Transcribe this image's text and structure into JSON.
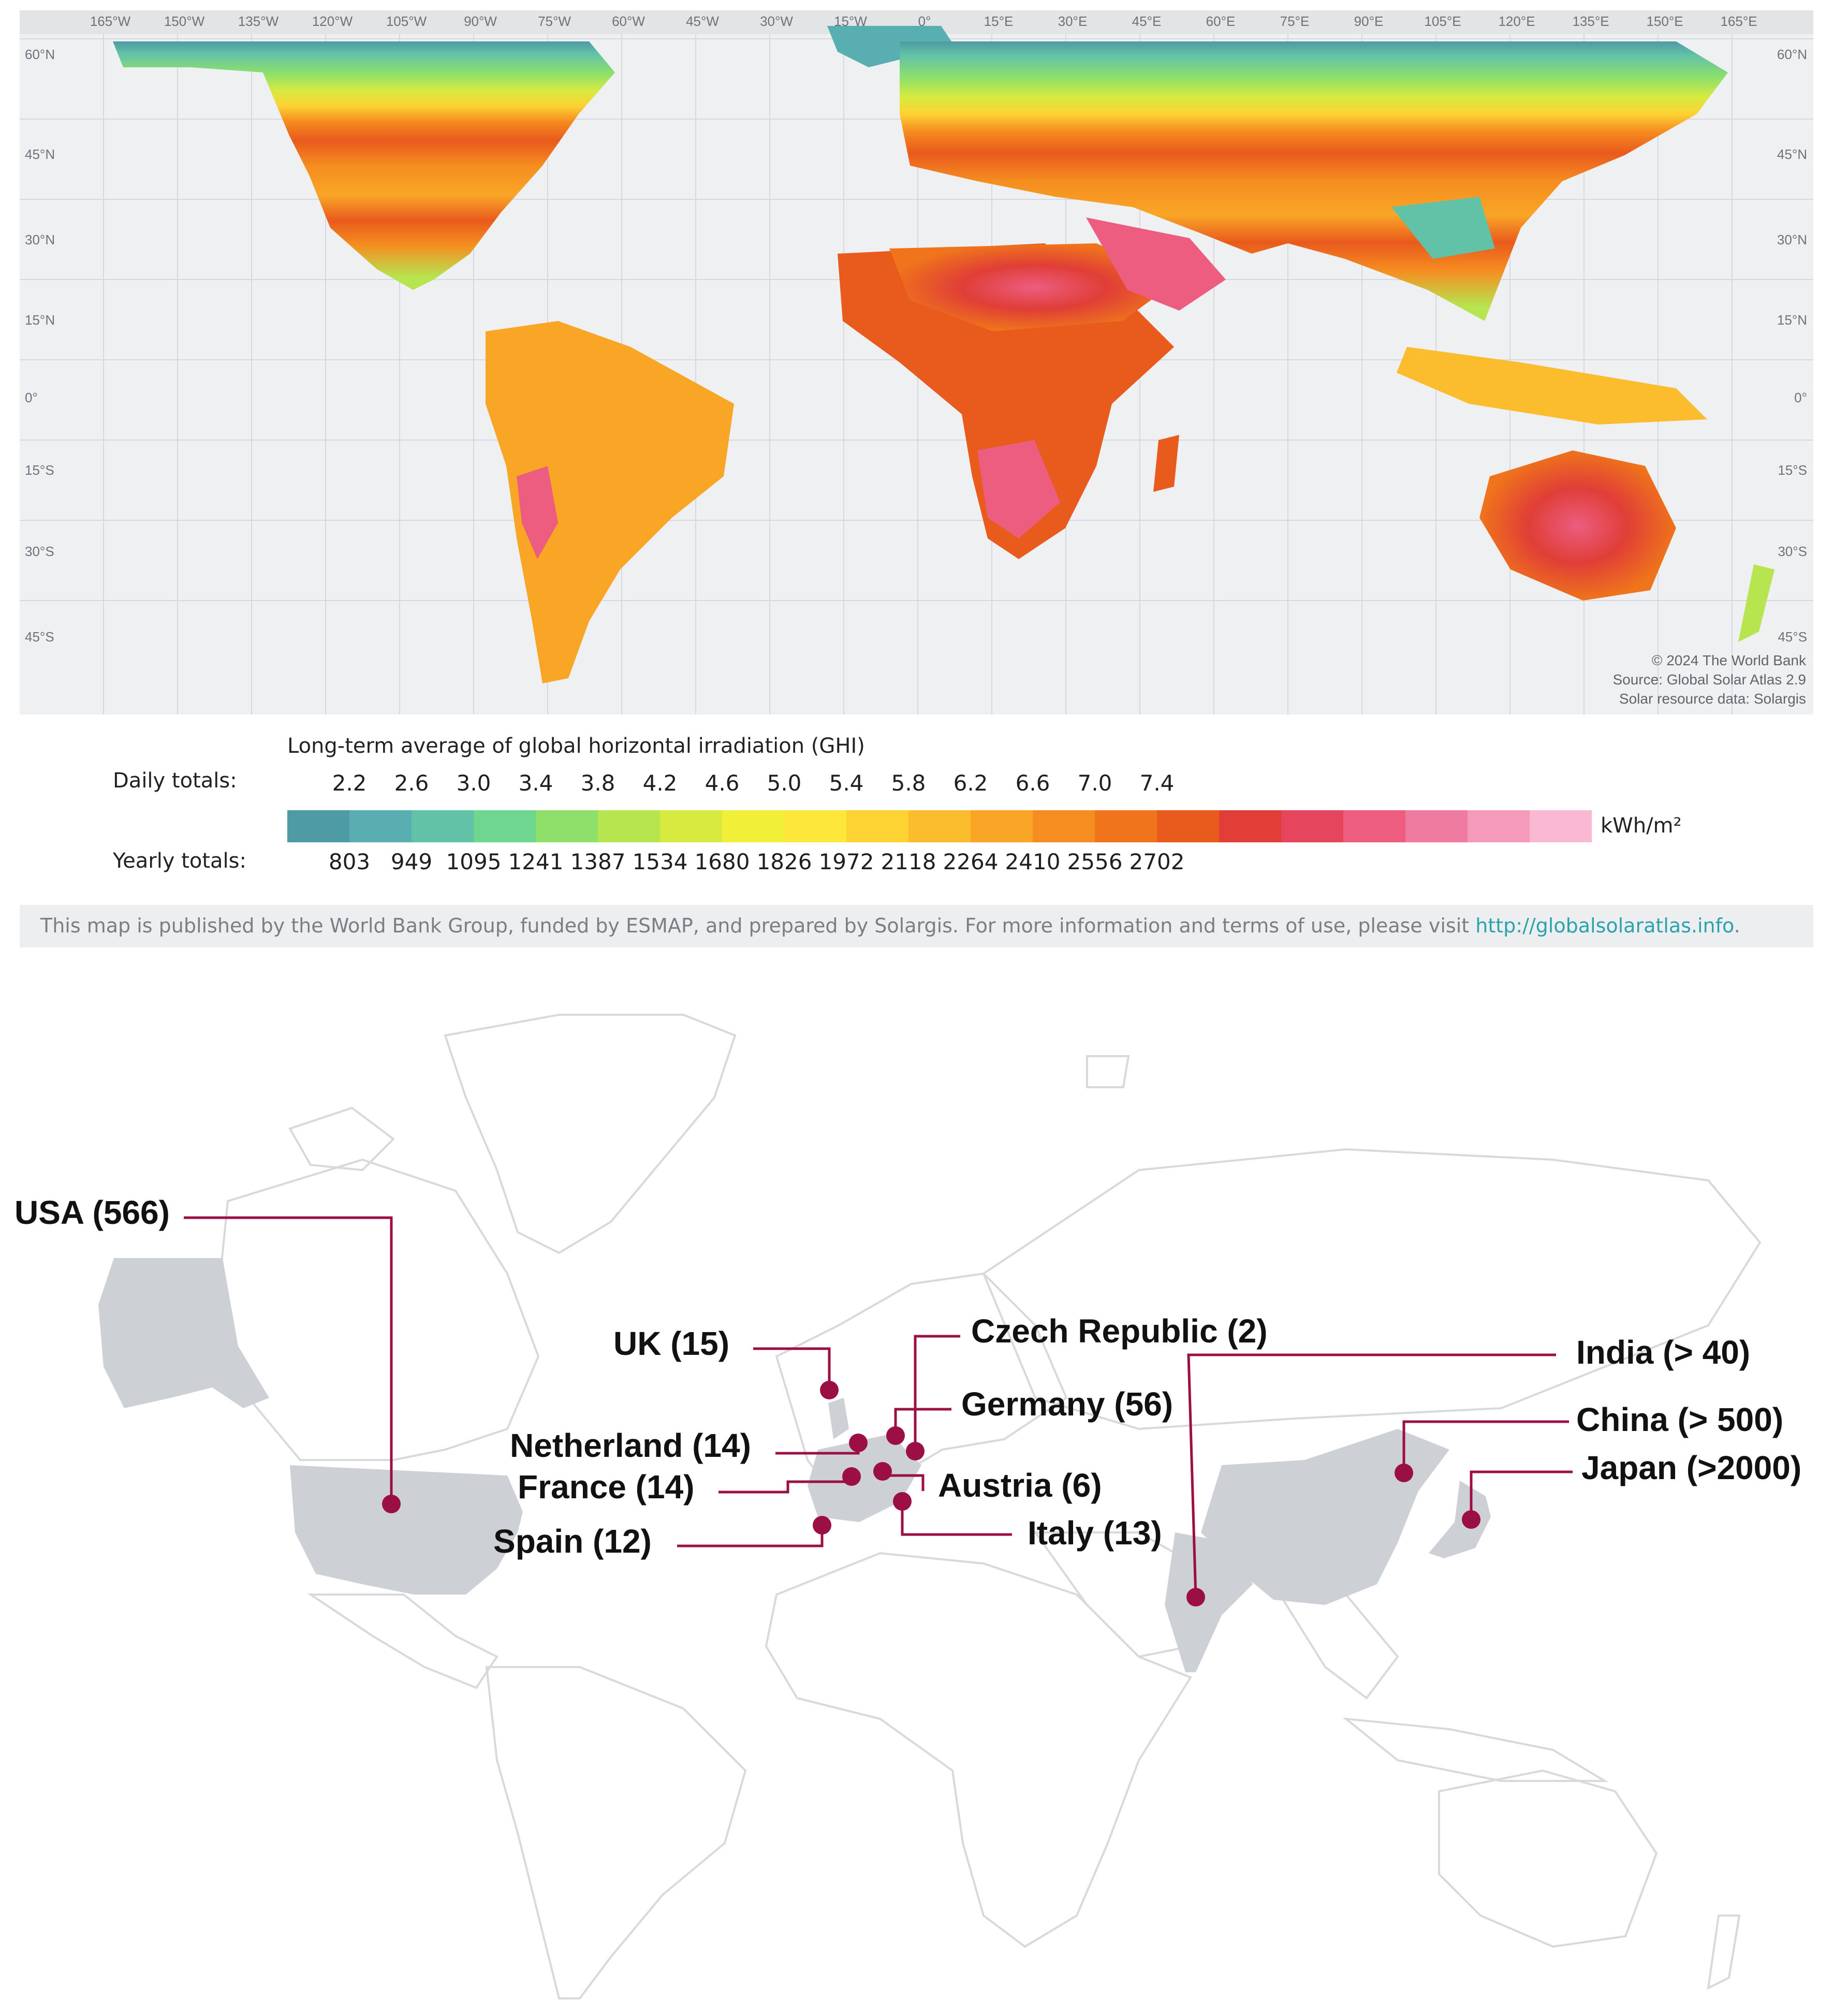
{
  "solar_map": {
    "longitude_labels": [
      "165°W",
      "150°W",
      "135°W",
      "120°W",
      "105°W",
      "90°W",
      "75°W",
      "60°W",
      "45°W",
      "30°W",
      "15°W",
      "0°",
      "15°E",
      "30°E",
      "45°E",
      "60°E",
      "75°E",
      "90°E",
      "105°E",
      "120°E",
      "135°E",
      "150°E",
      "165°E"
    ],
    "latitude_labels": [
      "60°N",
      "45°N",
      "30°N",
      "15°N",
      "0°",
      "15°S",
      "30°S",
      "45°S"
    ],
    "credits": [
      "© 2024 The World Bank",
      "Source: Global Solar Atlas 2.9",
      "Solar resource data: Solargis"
    ]
  },
  "legend": {
    "title": "Long-term average of global horizontal irradiation (GHI)",
    "daily_label": "Daily totals:",
    "yearly_label": "Yearly totals:",
    "daily_ticks": [
      "2.2",
      "2.6",
      "3.0",
      "3.4",
      "3.8",
      "4.2",
      "4.6",
      "5.0",
      "5.4",
      "5.8",
      "6.2",
      "6.6",
      "7.0",
      "7.4"
    ],
    "yearly_ticks": [
      "803",
      "949",
      "1095",
      "1241",
      "1387",
      "1534",
      "1680",
      "1826",
      "1972",
      "2118",
      "2264",
      "2410",
      "2556",
      "2702"
    ],
    "unit": "kWh/m²",
    "colors": [
      "#4e9ba4",
      "#58aeb0",
      "#62c2a8",
      "#6fd68f",
      "#8ee06a",
      "#b6e550",
      "#d8ea40",
      "#f2ef38",
      "#fde73a",
      "#fdd233",
      "#fbbd2e",
      "#f9a627",
      "#f58d20",
      "#ef741b",
      "#e95a1d",
      "#e03e37",
      "#e5465d",
      "#ec5d80",
      "#f07ba0",
      "#f59abb",
      "#fab8d2"
    ]
  },
  "info": {
    "text": "This map is published by the World Bank Group, funded by ESMAP, and prepared by Solargis. For more information and terms of use, please visit ",
    "link": "http://globalsolaratlas.info",
    "end": "."
  },
  "callouts": {
    "usa": "USA (566)",
    "uk": "UK (15)",
    "czech": "Czech Republic (2)",
    "germany": "Germany (56)",
    "netherland": "Netherland (14)",
    "france": "France (14)",
    "austria": "Austria (6)",
    "spain": "Spain (12)",
    "italy": "Italy (13)",
    "india": "India (> 40)",
    "china": "China (> 500)",
    "japan": "Japan (>2000)"
  },
  "colors": {
    "marker": "#9b0f45",
    "highlight_country": "#cdd0d4",
    "country_outline": "#d7d9dc"
  }
}
